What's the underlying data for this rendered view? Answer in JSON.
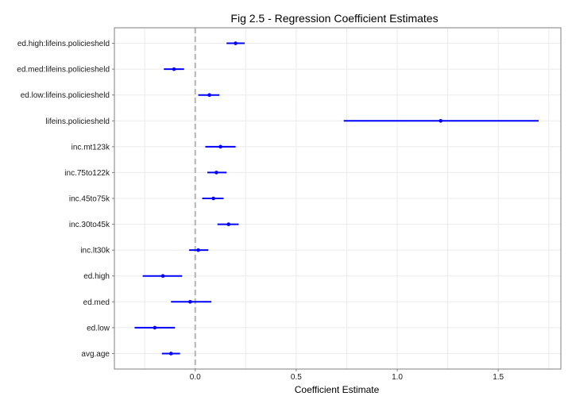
{
  "chart_data": {
    "type": "scatter",
    "title": "Fig 2.5 - Regression Coefficient Estimates",
    "xlabel": "Coefficient Estimate",
    "ylabel": "",
    "xlim": [
      -0.4,
      1.81
    ],
    "x_ticks": [
      0.0,
      0.5,
      1.0,
      1.5
    ],
    "x_tick_labels": [
      "0.0",
      "0.5",
      "1.0",
      "1.5"
    ],
    "reference_line": 0,
    "grid": true,
    "colors": {
      "point": "#0000ff",
      "interval": "#0000ff",
      "reference": "#b3b3b3",
      "grid": "#ebebeb",
      "panel_border": "#7f7f7f"
    },
    "series": [
      {
        "categories": [
          "avg.age",
          "ed.low",
          "ed.med",
          "ed.high",
          "inc.lt30k",
          "inc.30to45k",
          "inc.45to75k",
          "inc.75to122k",
          "inc.mt123k",
          "lifeins.policiesheld",
          "ed.low:lifeins.policiesheld",
          "ed.med:lifeins.policiesheld",
          "ed.high:lifeins.policiesheld"
        ],
        "estimate": [
          -0.12,
          -0.2,
          -0.025,
          -0.16,
          0.015,
          0.165,
          0.09,
          0.105,
          0.125,
          1.215,
          0.07,
          -0.105,
          0.2
        ],
        "lower": [
          -0.165,
          -0.3,
          -0.12,
          -0.26,
          -0.03,
          0.11,
          0.035,
          0.06,
          0.05,
          0.735,
          0.015,
          -0.155,
          0.155
        ],
        "upper": [
          -0.075,
          -0.1,
          0.08,
          -0.065,
          0.065,
          0.215,
          0.14,
          0.155,
          0.2,
          1.7,
          0.12,
          -0.055,
          0.245
        ]
      }
    ]
  }
}
